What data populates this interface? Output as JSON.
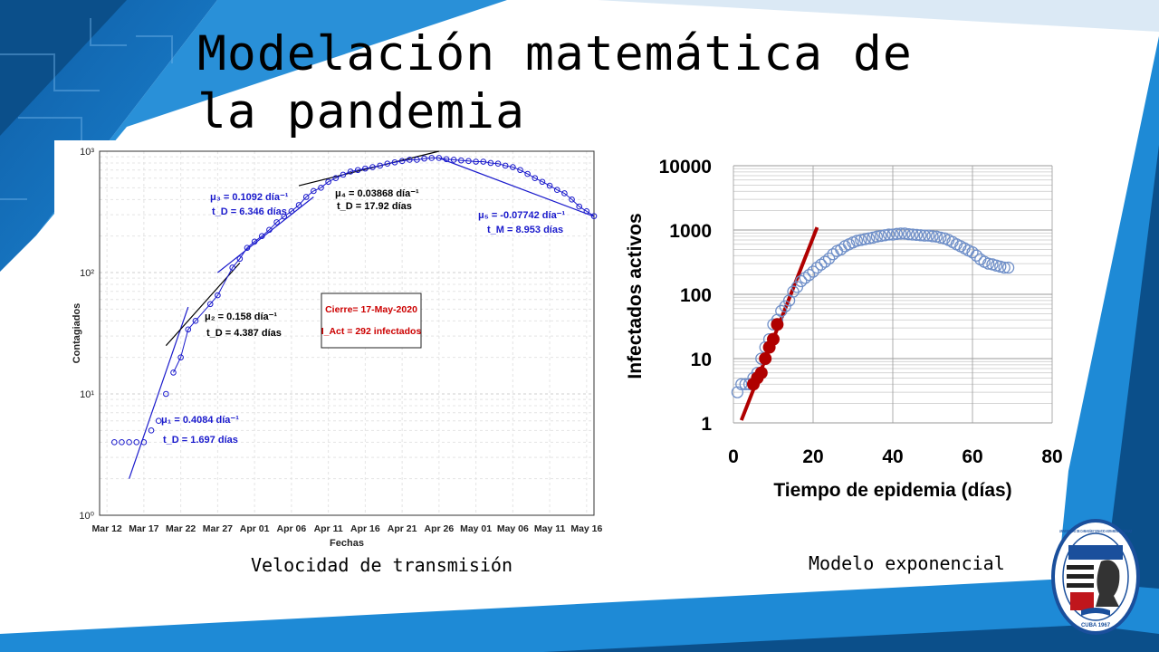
{
  "slide": {
    "title_line1": "Modelación matemática de",
    "title_line2": "la pandemia",
    "caption_left": "Velocidad de transmisión",
    "caption_right": "Modelo exponencial",
    "colors": {
      "dark_blue": "#0b4f8a",
      "mid_blue": "#1e8ad6",
      "light_blue": "#3aa0e8"
    }
  },
  "logo": {
    "ring_text": "UNIVERSIDAD DE CAMAGÜEY IGNACIO AGRAMONTE LOYNAZ",
    "bottom_text": "CUBA 1967"
  },
  "chart_data": [
    {
      "type": "scatter",
      "ylabel": "Contagiados",
      "xlabel": "Fechas",
      "y_scale": "log",
      "ylim": [
        1,
        1000
      ],
      "ytick_labels": [
        "10⁰",
        "10¹",
        "10²",
        "10³"
      ],
      "xlim": [
        "2020-03-11",
        "2020-05-17"
      ],
      "xtick_labels": [
        "Mar 12",
        "Mar 17",
        "Mar 22",
        "Mar 27",
        "Apr 01",
        "Apr 06",
        "Apr 11",
        "Apr 16",
        "Apr 21",
        "Apr 26",
        "May 01",
        "May 06",
        "May 11",
        "May 16"
      ],
      "grid": true,
      "series": [
        {
          "marker": "open-circle",
          "color": "#1a1acc",
          "x": [
            "2020-03-13",
            "2020-03-14",
            "2020-03-15",
            "2020-03-16",
            "2020-03-17",
            "2020-03-18",
            "2020-03-19",
            "2020-03-20",
            "2020-03-21",
            "2020-03-22",
            "2020-03-23",
            "2020-03-24",
            "2020-03-26",
            "2020-03-27",
            "2020-03-29",
            "2020-03-30",
            "2020-03-31",
            "2020-04-01",
            "2020-04-02",
            "2020-04-03",
            "2020-04-04",
            "2020-04-05",
            "2020-04-06",
            "2020-04-07",
            "2020-04-08",
            "2020-04-09",
            "2020-04-10",
            "2020-04-11",
            "2020-04-12",
            "2020-04-13",
            "2020-04-14",
            "2020-04-15",
            "2020-04-16",
            "2020-04-17",
            "2020-04-18",
            "2020-04-19",
            "2020-04-20",
            "2020-04-21",
            "2020-04-22",
            "2020-04-23",
            "2020-04-24",
            "2020-04-25",
            "2020-04-26",
            "2020-04-27",
            "2020-04-28",
            "2020-04-29",
            "2020-04-30",
            "2020-05-01",
            "2020-05-02",
            "2020-05-03",
            "2020-05-04",
            "2020-05-05",
            "2020-05-06",
            "2020-05-07",
            "2020-05-08",
            "2020-05-09",
            "2020-05-10",
            "2020-05-11",
            "2020-05-12",
            "2020-05-13",
            "2020-05-14",
            "2020-05-15",
            "2020-05-16",
            "2020-05-17"
          ],
          "y": [
            4,
            4,
            4,
            4,
            4,
            5,
            6,
            10,
            15,
            20,
            34,
            40,
            55,
            65,
            110,
            130,
            160,
            180,
            200,
            225,
            260,
            290,
            320,
            360,
            420,
            470,
            500,
            560,
            600,
            640,
            680,
            700,
            720,
            740,
            760,
            790,
            810,
            830,
            850,
            850,
            870,
            880,
            880,
            860,
            850,
            840,
            830,
            820,
            820,
            800,
            790,
            760,
            740,
            700,
            650,
            600,
            560,
            520,
            480,
            450,
            400,
            350,
            320,
            292
          ]
        }
      ],
      "fits": [
        {
          "label_mu": "μ₁ = 0.4084 día⁻¹",
          "label_t": "t_D = 1.697 días",
          "color": "#1a1acc",
          "x": [
            "2020-03-15",
            "2020-03-23"
          ],
          "y": [
            2,
            52
          ]
        },
        {
          "label_mu": "μ₂ = 0.158 día⁻¹",
          "label_t": "t_D = 4.387 días",
          "color": "#000000",
          "x": [
            "2020-03-20",
            "2020-03-30"
          ],
          "y": [
            25,
            120
          ]
        },
        {
          "label_mu": "μ₃ = 0.1092 día⁻¹",
          "label_t": "t_D = 6.346 días",
          "color": "#1a1acc",
          "x": [
            "2020-03-27",
            "2020-04-09"
          ],
          "y": [
            100,
            420
          ]
        },
        {
          "label_mu": "μ₄ = 0.03868 día⁻¹",
          "label_t": "t_D = 17.92 días",
          "color": "#000000",
          "x": [
            "2020-04-07",
            "2020-04-26"
          ],
          "y": [
            520,
            1000
          ]
        },
        {
          "label_mu": "μ₅ = -0.07742 día⁻¹",
          "label_t": "t_M = 8.953 días",
          "color": "#1a1acc",
          "x": [
            "2020-04-26",
            "2020-05-17"
          ],
          "y": [
            880,
            290
          ]
        }
      ],
      "annotation": {
        "line1": "Cierre= 17-May-2020",
        "line2": "I_Act = 292 infectados",
        "color": "#cc0000"
      }
    },
    {
      "type": "scatter",
      "xlabel": "Tiempo de epidemia (días)",
      "ylabel": "Infectados activos",
      "y_scale": "log",
      "ylim": [
        1,
        10000
      ],
      "yticks": [
        "1",
        "10",
        "100",
        "1000",
        "10000"
      ],
      "xlim": [
        0,
        80
      ],
      "xticks": [
        "0",
        "20",
        "40",
        "60",
        "80"
      ],
      "grid": true,
      "series": [
        {
          "name": "",
          "marker": "open-circle",
          "color": "#6f8fc8",
          "x": [
            1,
            2,
            3,
            4,
            5,
            6,
            7,
            8,
            9,
            10,
            11,
            12,
            13,
            14,
            15,
            16,
            17,
            18,
            19,
            20,
            21,
            22,
            23,
            24,
            25,
            26,
            27,
            28,
            29,
            30,
            31,
            32,
            33,
            34,
            35,
            36,
            37,
            38,
            39,
            40,
            41,
            42,
            43,
            44,
            45,
            46,
            47,
            48,
            49,
            50,
            51,
            52,
            53,
            54,
            55,
            56,
            57,
            58,
            59,
            60,
            61,
            62,
            63,
            64,
            65,
            66,
            67,
            68,
            69
          ],
          "y": [
            3,
            4,
            4,
            4,
            5,
            6,
            10,
            15,
            20,
            34,
            40,
            55,
            65,
            80,
            110,
            130,
            160,
            180,
            200,
            225,
            260,
            290,
            320,
            360,
            420,
            470,
            500,
            560,
            600,
            640,
            680,
            700,
            720,
            740,
            760,
            790,
            810,
            830,
            850,
            850,
            870,
            880,
            880,
            860,
            850,
            840,
            830,
            820,
            820,
            800,
            790,
            760,
            740,
            700,
            650,
            600,
            560,
            520,
            480,
            450,
            400,
            350,
            320,
            300,
            292,
            280,
            270,
            260,
            260
          ]
        },
        {
          "name": "",
          "marker": "filled-circle",
          "color": "#b00000",
          "x": [
            5,
            6,
            7,
            8,
            9,
            10,
            11
          ],
          "y": [
            4,
            5,
            6,
            10,
            15,
            20,
            34
          ]
        }
      ],
      "fit_line": {
        "color": "#b00000",
        "x": [
          2,
          21
        ],
        "y": [
          1.1,
          1100
        ]
      }
    }
  ]
}
